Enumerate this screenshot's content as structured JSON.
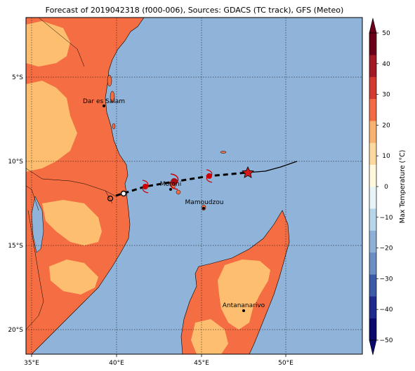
{
  "title": "Forecast of 2019042318 (f000-006), Sources: GDACS (TC track), GFS (Meteo)",
  "x_ticks": [
    "35°E",
    "40°E",
    "45°E",
    "50°E"
  ],
  "y_ticks": [
    "5°S",
    "10°S",
    "15°S",
    "20°S"
  ],
  "cities": [
    {
      "name": "Dar es Salam"
    },
    {
      "name": "Moroni"
    },
    {
      "name": "Mamoudzou"
    },
    {
      "name": "Antananarivo"
    }
  ],
  "colorbar": {
    "label": "Max Temperature (°C)",
    "ticks": [
      "50",
      "40",
      "30",
      "20",
      "10",
      "0",
      "−10",
      "−20",
      "−30",
      "−40",
      "−50"
    ],
    "colors": [
      "#0a0a6e",
      "#1f2a8c",
      "#3b5ba8",
      "#6a8fc4",
      "#8fb0d6",
      "#b8d6ea",
      "#e6f4f8",
      "#fff8dc",
      "#fdd9a0",
      "#f8b270",
      "#f36b43",
      "#d43a2f",
      "#a31a27",
      "#6b0018"
    ]
  },
  "map": {
    "ocean_color": "#8fb3d9",
    "land_warm_color": "#f46d43",
    "land_mild_color": "#fdbf6f",
    "track_color": "#000000",
    "cyclone_color": "#cc0000",
    "star_color": "#d7191c"
  }
}
